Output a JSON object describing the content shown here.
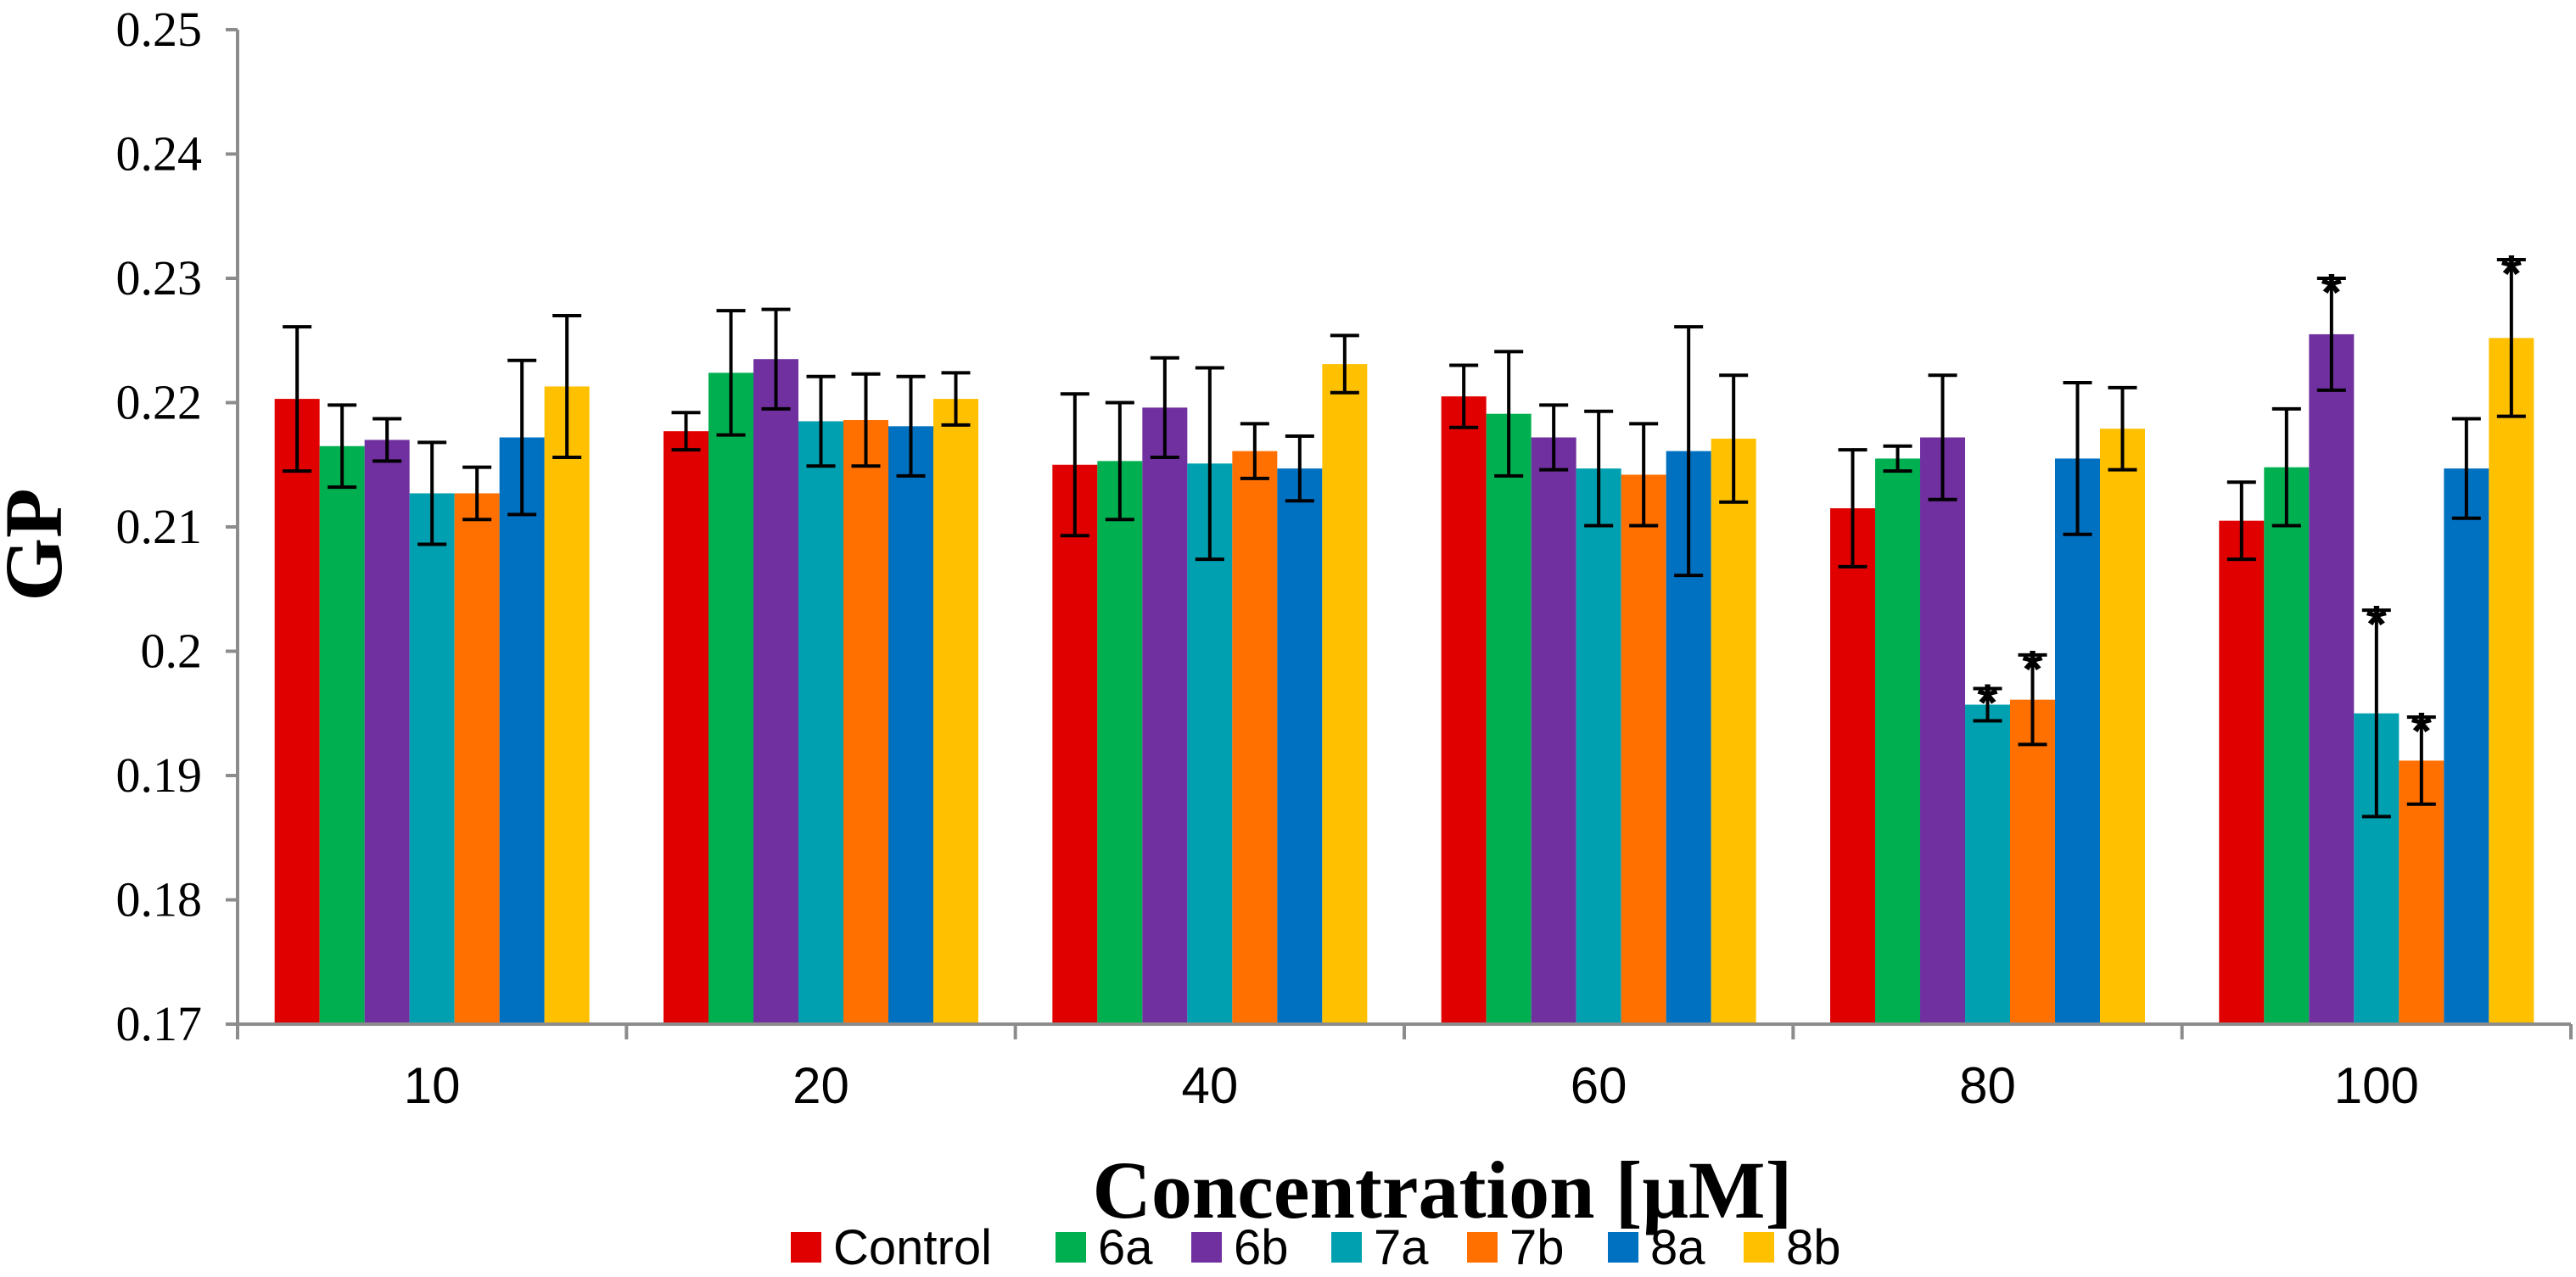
{
  "chart_data": {
    "type": "bar",
    "title": "",
    "xlabel": "Concentration [μM]",
    "ylabel": "GP",
    "ylim": [
      0.17,
      0.25
    ],
    "yticks": [
      "0.17",
      "0.18",
      "0.19",
      "0.2",
      "0.21",
      "0.22",
      "0.23",
      "0.24",
      "0.25"
    ],
    "categories": [
      "10",
      "20",
      "40",
      "60",
      "80",
      "100"
    ],
    "legend_position": "bottom",
    "significance_marker": "*",
    "series": [
      {
        "name": "Control",
        "color": "#e00000",
        "values": [
          0.2203,
          0.2177,
          0.215,
          0.2205,
          0.2115,
          0.2105
        ],
        "errors": [
          0.0058,
          0.0015,
          0.0057,
          0.0025,
          0.0047,
          0.0031
        ],
        "significant": [
          false,
          false,
          false,
          false,
          false,
          false
        ]
      },
      {
        "name": "6a",
        "color": "#00b050",
        "values": [
          0.2165,
          0.2224,
          0.2153,
          0.2191,
          0.2155,
          0.2148
        ],
        "errors": [
          0.0033,
          0.005,
          0.0047,
          0.005,
          0.001,
          0.0047
        ],
        "significant": [
          false,
          false,
          false,
          false,
          false,
          false
        ]
      },
      {
        "name": "6b",
        "color": "#7030a0",
        "values": [
          0.217,
          0.2235,
          0.2196,
          0.2172,
          0.2172,
          0.2255
        ],
        "errors": [
          0.0017,
          0.004,
          0.004,
          0.0026,
          0.005,
          0.0045
        ],
        "significant": [
          false,
          false,
          false,
          false,
          false,
          true
        ]
      },
      {
        "name": "7a",
        "color": "#00a0b0",
        "values": [
          0.2127,
          0.2185,
          0.2151,
          0.2147,
          0.1957,
          0.195
        ],
        "errors": [
          0.0041,
          0.0036,
          0.0077,
          0.0046,
          0.0013,
          0.0083
        ],
        "significant": [
          false,
          false,
          false,
          false,
          true,
          true
        ]
      },
      {
        "name": "7b",
        "color": "#ff7000",
        "values": [
          0.2127,
          0.2186,
          0.2161,
          0.2142,
          0.1961,
          0.1912
        ],
        "errors": [
          0.0021,
          0.0037,
          0.0022,
          0.0041,
          0.0036,
          0.0035
        ],
        "significant": [
          false,
          false,
          false,
          false,
          true,
          true
        ]
      },
      {
        "name": "8a",
        "color": "#0070c0",
        "values": [
          0.2172,
          0.2181,
          0.2147,
          0.2161,
          0.2155,
          0.2147
        ],
        "errors": [
          0.0062,
          0.004,
          0.0026,
          0.01,
          0.0061,
          0.004
        ],
        "significant": [
          false,
          false,
          false,
          false,
          false,
          false
        ]
      },
      {
        "name": "8b",
        "color": "#ffc000",
        "values": [
          0.2213,
          0.2203,
          0.2231,
          0.2171,
          0.2179,
          0.2252
        ],
        "errors": [
          0.0057,
          0.0021,
          0.0023,
          0.0051,
          0.0033,
          0.0063
        ],
        "significant": [
          false,
          false,
          false,
          false,
          false,
          true
        ]
      }
    ]
  }
}
